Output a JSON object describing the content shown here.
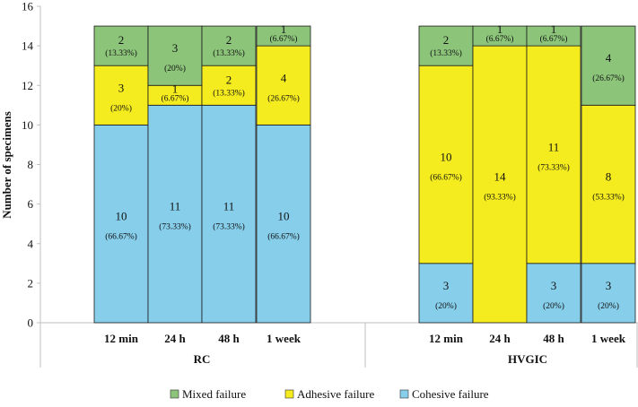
{
  "chart_data": {
    "type": "bar",
    "stacked": true,
    "ylabel": "Number of specimens",
    "ylim": [
      0,
      16
    ],
    "yticks": [
      0,
      2,
      4,
      6,
      8,
      10,
      12,
      14,
      16
    ],
    "grid": false,
    "legend_position": "bottom",
    "groups": [
      {
        "name": "RC",
        "categories": [
          "12 min",
          "24 h",
          "48 h",
          "1 week"
        ]
      },
      {
        "name": "HVGIC",
        "categories": [
          "12 min",
          "24 h",
          "48 h",
          "1 week"
        ]
      }
    ],
    "series": [
      {
        "name": "Cohesive failure",
        "color": "#87ceeb",
        "values": [
          10,
          11,
          11,
          10,
          3,
          0,
          3,
          3
        ],
        "labels": [
          "10",
          "11",
          "11",
          "10",
          "3",
          "",
          "3",
          "3"
        ],
        "pct_labels": [
          "(66.67%)",
          "(73.33%)",
          "(73.33%)",
          "(66.67%)",
          "(20%)",
          "",
          "(20%)",
          "(20%)"
        ]
      },
      {
        "name": "Adhesive failure",
        "color": "#f5ec1f",
        "values": [
          3,
          1,
          2,
          4,
          10,
          14,
          11,
          8
        ],
        "labels": [
          "3",
          "1",
          "2",
          "4",
          "10",
          "14",
          "11",
          "8"
        ],
        "pct_labels": [
          "(20%)",
          "(6.67%)",
          "(13.33%)",
          "(26.67%)",
          "(66.67%)",
          "(93.33%)",
          "(73.33%)",
          "(53.33%)"
        ]
      },
      {
        "name": "Mixed failure",
        "color": "#8cc47a",
        "values": [
          2,
          3,
          2,
          1,
          2,
          1,
          1,
          4
        ],
        "labels": [
          "2",
          "3",
          "2",
          "1",
          "2",
          "1",
          "1",
          "4"
        ],
        "pct_labels": [
          "(13.33%)",
          "(20%)",
          "(13.33%)",
          "(6.67%)",
          "(13.33%)",
          "(6.67%)",
          "(6.67%)",
          "(26.67%)"
        ]
      }
    ],
    "legend_order": [
      "Mixed failure",
      "Adhesive failure",
      "Cohesive failure"
    ]
  }
}
